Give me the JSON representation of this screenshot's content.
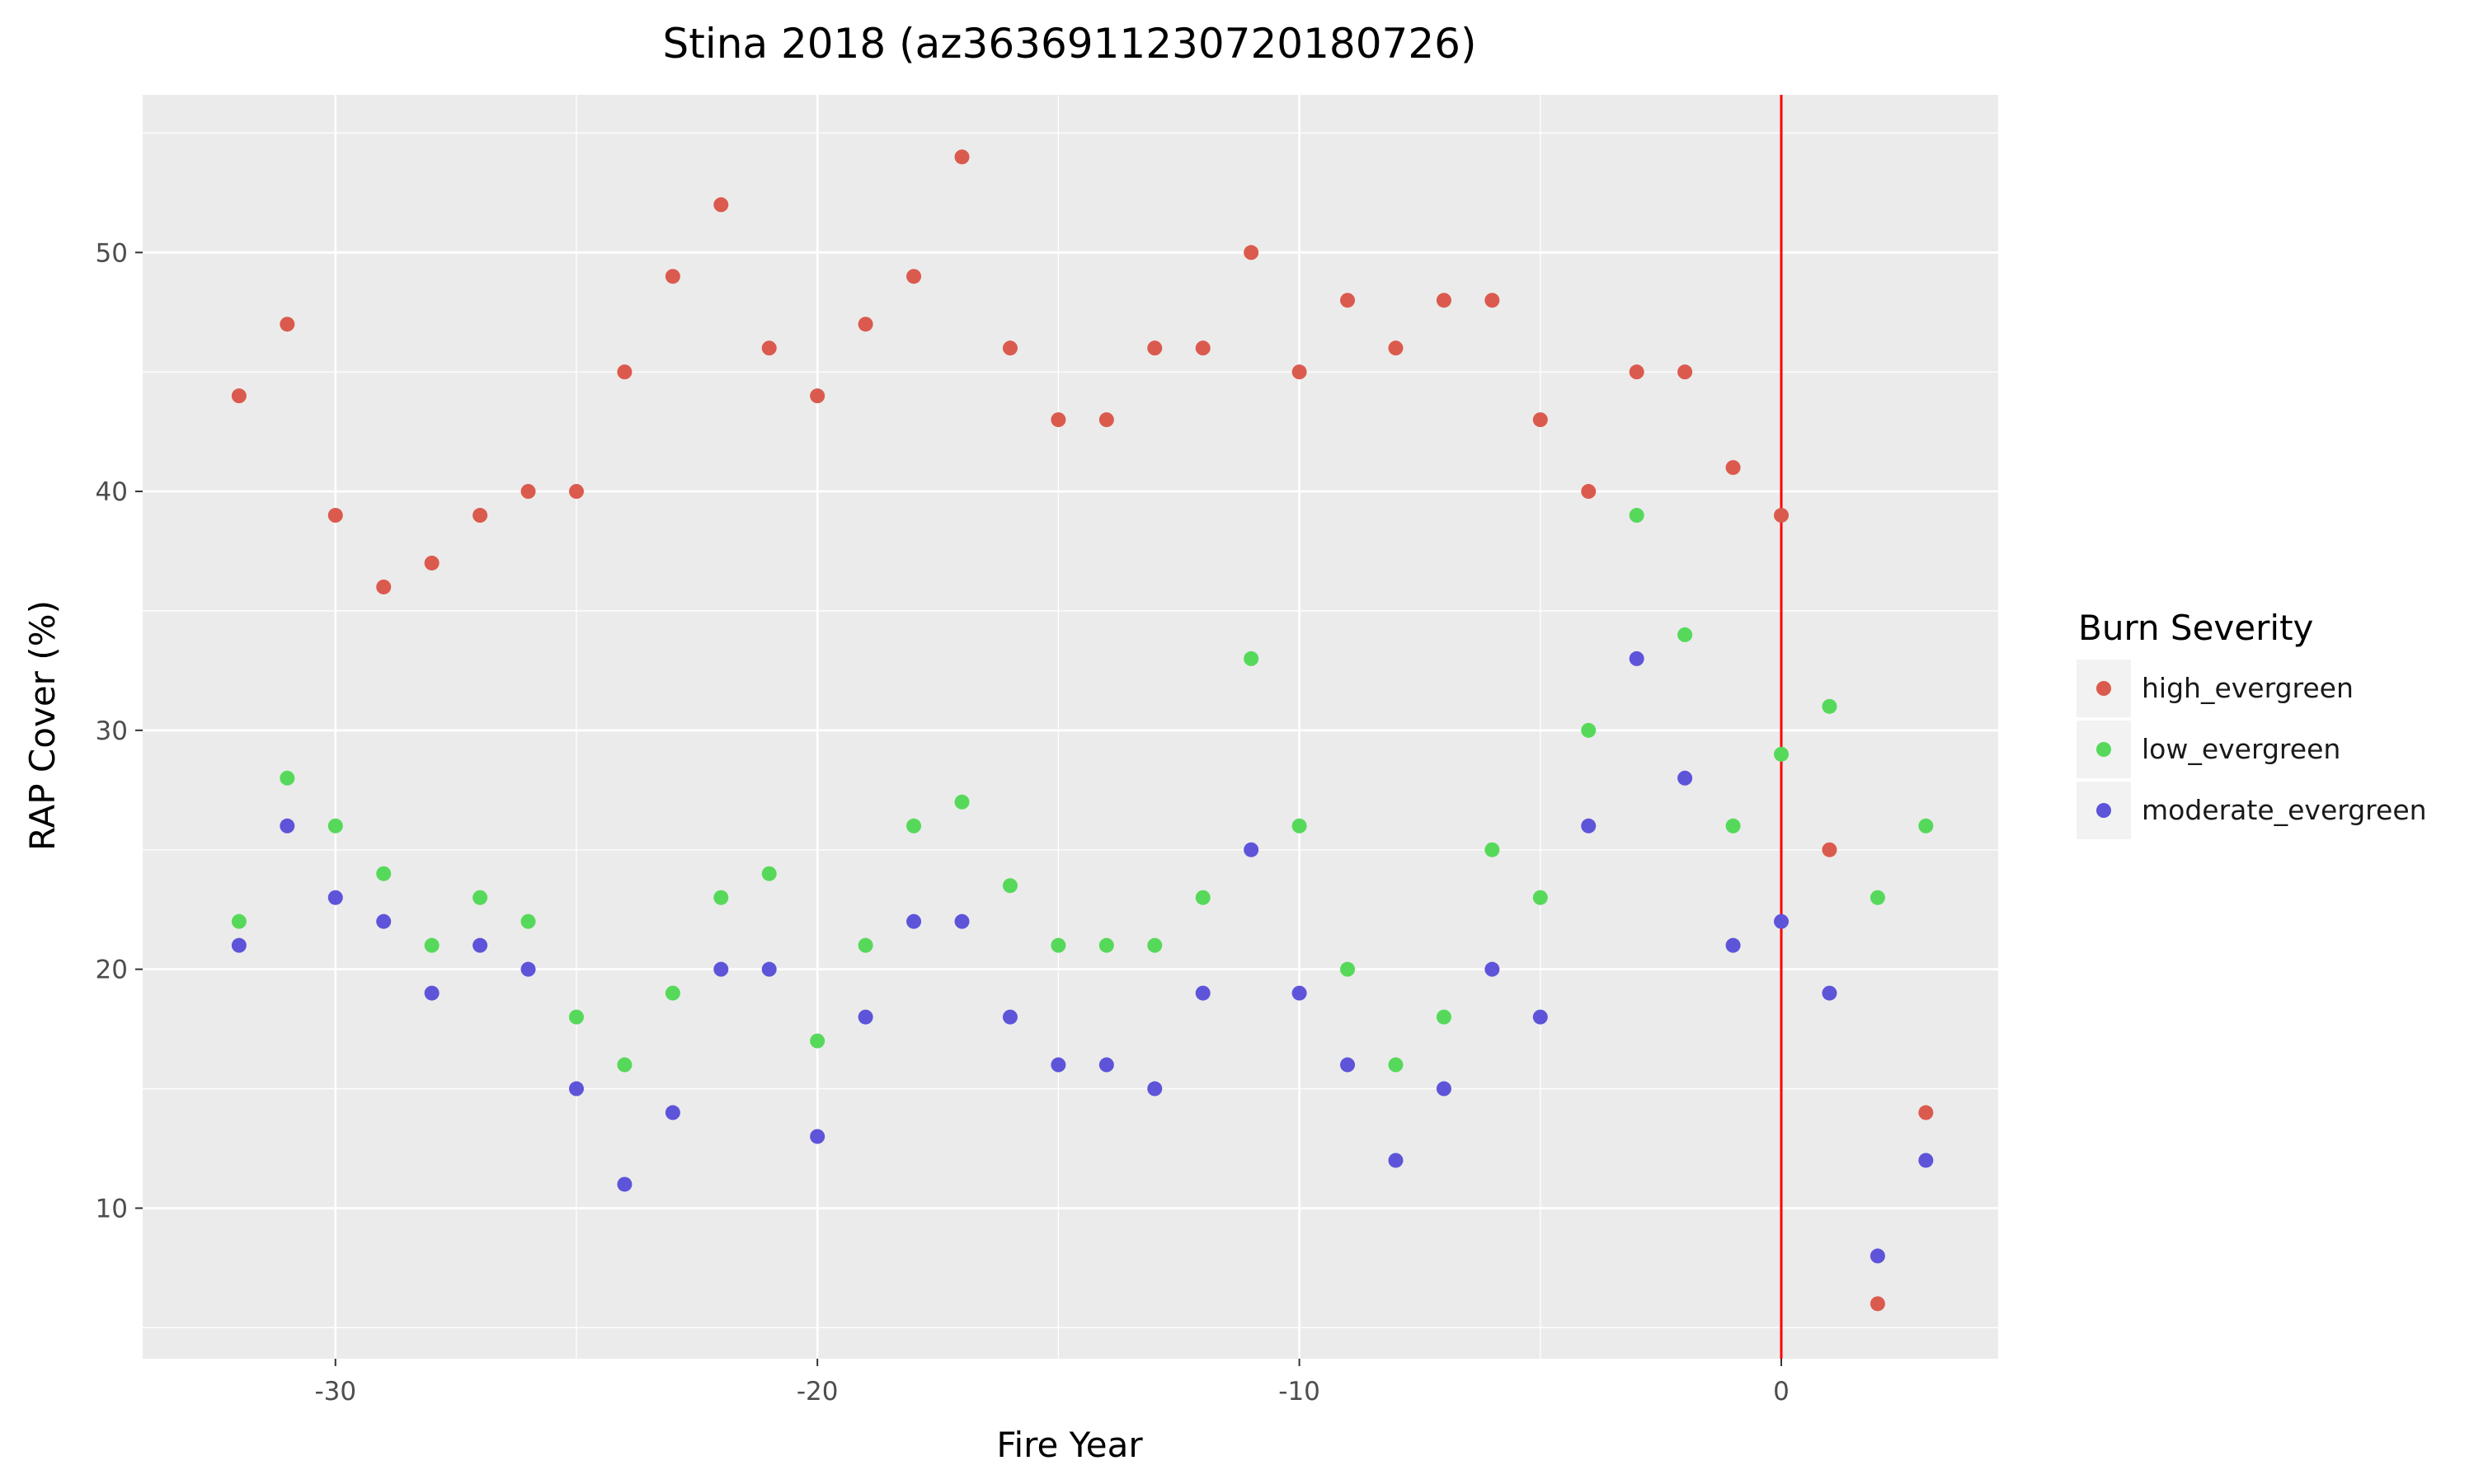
{
  "chart_data": {
    "type": "scatter",
    "title": "Stina 2018 (az36369112307201807​26)",
    "xlabel": "Fire Year",
    "ylabel": "RAP Cover (%)",
    "xlim": [
      -34,
      4.5
    ],
    "ylim": [
      3.7,
      56.6
    ],
    "xticks": [
      -30,
      -20,
      -10,
      0
    ],
    "yticks": [
      10,
      20,
      30,
      40,
      50
    ],
    "grid": true,
    "vline": {
      "x": 0,
      "color": "#ff0000"
    },
    "legend": {
      "title": "Burn Severity",
      "position": "right"
    },
    "series": [
      {
        "name": "high_evergreen",
        "color": "#db5a4e",
        "points": [
          [
            -32,
            44
          ],
          [
            -31,
            47
          ],
          [
            -30,
            39
          ],
          [
            -29,
            36
          ],
          [
            -28,
            37
          ],
          [
            -27,
            39
          ],
          [
            -26,
            40
          ],
          [
            -25,
            40
          ],
          [
            -24,
            45
          ],
          [
            -23,
            49
          ],
          [
            -22,
            52
          ],
          [
            -21,
            46
          ],
          [
            -20,
            44
          ],
          [
            -19,
            47
          ],
          [
            -18,
            49
          ],
          [
            -17,
            54
          ],
          [
            -16,
            46
          ],
          [
            -15,
            43
          ],
          [
            -14,
            43
          ],
          [
            -13,
            46
          ],
          [
            -12,
            46
          ],
          [
            -11,
            50
          ],
          [
            -10,
            45
          ],
          [
            -9,
            48
          ],
          [
            -8,
            46
          ],
          [
            -7,
            48
          ],
          [
            -6,
            48
          ],
          [
            -5,
            43
          ],
          [
            -4,
            40
          ],
          [
            -3,
            45
          ],
          [
            -2,
            45
          ],
          [
            -1,
            41
          ],
          [
            0,
            39
          ],
          [
            1,
            25
          ],
          [
            2,
            6
          ],
          [
            3,
            14
          ]
        ]
      },
      {
        "name": "low_evergreen",
        "color": "#56d95a",
        "points": [
          [
            -32,
            22
          ],
          [
            -31,
            28
          ],
          [
            -30,
            26
          ],
          [
            -29,
            24
          ],
          [
            -28,
            21
          ],
          [
            -27,
            23
          ],
          [
            -26,
            22
          ],
          [
            -25,
            18
          ],
          [
            -24,
            16
          ],
          [
            -23,
            19
          ],
          [
            -22,
            23
          ],
          [
            -21,
            24
          ],
          [
            -20,
            17
          ],
          [
            -19,
            21
          ],
          [
            -18,
            26
          ],
          [
            -17,
            27
          ],
          [
            -16,
            23.5
          ],
          [
            -15,
            21
          ],
          [
            -14,
            21
          ],
          [
            -13,
            21
          ],
          [
            -12,
            23
          ],
          [
            -11,
            33
          ],
          [
            -10,
            26
          ],
          [
            -9,
            20
          ],
          [
            -8,
            16
          ],
          [
            -7,
            18
          ],
          [
            -6,
            25
          ],
          [
            -5,
            23
          ],
          [
            -4,
            30
          ],
          [
            -3,
            39
          ],
          [
            -2,
            34
          ],
          [
            -1,
            26
          ],
          [
            0,
            29
          ],
          [
            1,
            31
          ],
          [
            2,
            23
          ],
          [
            3,
            26
          ]
        ]
      },
      {
        "name": "moderate_evergreen",
        "color": "#5e54d9",
        "points": [
          [
            -32,
            21
          ],
          [
            -31,
            26
          ],
          [
            -30,
            23
          ],
          [
            -29,
            22
          ],
          [
            -28,
            19
          ],
          [
            -27,
            21
          ],
          [
            -26,
            20
          ],
          [
            -25,
            15
          ],
          [
            -24,
            11
          ],
          [
            -23,
            14
          ],
          [
            -22,
            20
          ],
          [
            -21,
            20
          ],
          [
            -20,
            13
          ],
          [
            -19,
            18
          ],
          [
            -18,
            22
          ],
          [
            -17,
            22
          ],
          [
            -16,
            18
          ],
          [
            -15,
            16
          ],
          [
            -14,
            16
          ],
          [
            -13,
            15
          ],
          [
            -12,
            19
          ],
          [
            -11,
            25
          ],
          [
            -10,
            19
          ],
          [
            -9,
            16
          ],
          [
            -8,
            12
          ],
          [
            -7,
            15
          ],
          [
            -6,
            20
          ],
          [
            -5,
            18
          ],
          [
            -4,
            26
          ],
          [
            -3,
            33
          ],
          [
            -2,
            28
          ],
          [
            -1,
            21
          ],
          [
            0,
            22
          ],
          [
            1,
            19
          ],
          [
            2,
            8
          ],
          [
            3,
            12
          ]
        ]
      }
    ]
  }
}
